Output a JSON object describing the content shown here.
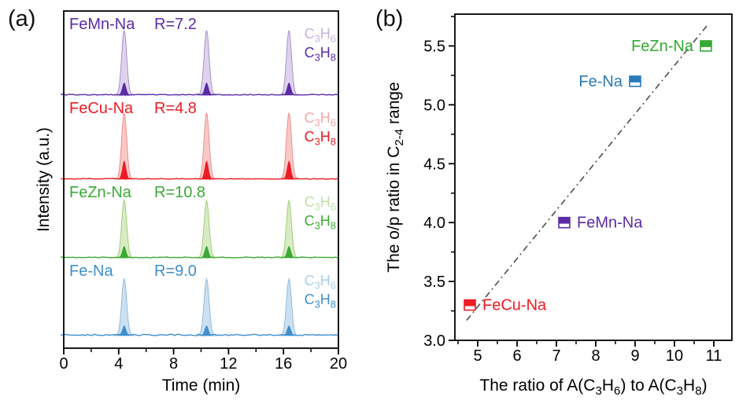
{
  "figure": {
    "panel_a_tag": "(a)",
    "panel_b_tag": "(b)",
    "background": "#ffffff"
  },
  "chart_data": [
    {
      "type": "area",
      "panel": "a",
      "xlabel": "Time (min)",
      "ylabel": "Intensity (a.u.)",
      "xlim": [
        0,
        20
      ],
      "xticks": [
        0,
        4,
        8,
        12,
        16,
        20
      ],
      "xminorticks": [
        2,
        6,
        10,
        14,
        18
      ],
      "peak_times_min": [
        4.4,
        10.4,
        16.4
      ],
      "species_labels": {
        "light": [
          {
            "t": "C"
          },
          {
            "t": "3",
            "sub": true
          },
          {
            "t": "H"
          },
          {
            "t": "6",
            "sub": true
          }
        ],
        "dark": [
          {
            "t": "C"
          },
          {
            "t": "3",
            "sub": true
          },
          {
            "t": "H"
          },
          {
            "t": "8",
            "sub": true
          }
        ]
      },
      "traces": [
        {
          "name": "FeMn-Na",
          "r_label": "R=7.2",
          "r_value": 7.2,
          "color": "#5b2ca6",
          "peak_fill": "#ddd3ed",
          "peak_stroke": "#a98fd0",
          "light_text_color": "#c3b2de",
          "light_peak_rel": 0.77,
          "dark_peak_rel": 0.15
        },
        {
          "name": "FeCu-Na",
          "r_label": "R=4.8",
          "r_value": 4.8,
          "color": "#ec1c24",
          "peak_fill": "#f9c9c7",
          "peak_stroke": "#ef8e8c",
          "light_text_color": "#f5a9a7",
          "light_peak_rel": 0.79,
          "dark_peak_rel": 0.22
        },
        {
          "name": "FeZn-Na",
          "r_label": "R=10.8",
          "r_value": 10.8,
          "color": "#3baa35",
          "peak_fill": "#d9ebc5",
          "peak_stroke": "#9ed077",
          "light_text_color": "#bfdfa5",
          "light_peak_rel": 0.73,
          "dark_peak_rel": 0.15
        },
        {
          "name": "Fe-Na",
          "r_label": "R=9.0",
          "r_value": 9.0,
          "color": "#3f8fcd",
          "peak_fill": "#cbe0f1",
          "peak_stroke": "#8fbcdf",
          "light_text_color": "#a9cde9",
          "light_peak_rel": 0.73,
          "dark_peak_rel": 0.13
        }
      ]
    },
    {
      "type": "scatter",
      "panel": "b",
      "xlabel_segments": [
        {
          "t": "The ratio of A(C"
        },
        {
          "t": "3",
          "sub": true
        },
        {
          "t": "H"
        },
        {
          "t": "6",
          "sub": true
        },
        {
          "t": ") to A(C"
        },
        {
          "t": "3",
          "sub": true
        },
        {
          "t": "H"
        },
        {
          "t": "8",
          "sub": true
        },
        {
          "t": ")"
        }
      ],
      "ylabel_segments": [
        {
          "t": "The o/p ratio in C"
        },
        {
          "t": "2-4",
          "sub": true
        },
        {
          "t": " range"
        }
      ],
      "xlim": [
        4.42,
        11.46
      ],
      "ylim": [
        3.0,
        5.77
      ],
      "xticks": [
        5,
        6,
        7,
        8,
        9,
        10,
        11
      ],
      "xminorticks": [
        4.5,
        5.5,
        6.5,
        7.5,
        8.5,
        9.5,
        10.5
      ],
      "yticks": [
        3.0,
        3.5,
        4.0,
        4.5,
        5.0,
        5.5
      ],
      "ytick_labels": [
        "3.0",
        "3.5",
        "4.0",
        "4.5",
        "5.0",
        "5.5"
      ],
      "yminorticks": [
        3.25,
        3.75,
        4.25,
        4.75,
        5.25,
        5.75
      ],
      "points": [
        {
          "name": "FeCu-Na",
          "x": 4.8,
          "y": 3.3,
          "color": "#ec1c24",
          "label_side": "right"
        },
        {
          "name": "FeMn-Na",
          "x": 7.2,
          "y": 4.0,
          "color": "#5b2ca6",
          "label_side": "right"
        },
        {
          "name": "Fe-Na",
          "x": 9.0,
          "y": 5.2,
          "color": "#2a7ab9",
          "label_side": "left"
        },
        {
          "name": "FeZn-Na",
          "x": 10.8,
          "y": 5.5,
          "color": "#35a835",
          "label_side": "left"
        }
      ],
      "trendline": {
        "x1": 4.72,
        "y1": 3.17,
        "x2": 10.82,
        "y2": 5.67,
        "color": "#4d4d4d",
        "style": "dash-dot"
      },
      "marker_style": "half-filled-square"
    }
  ]
}
